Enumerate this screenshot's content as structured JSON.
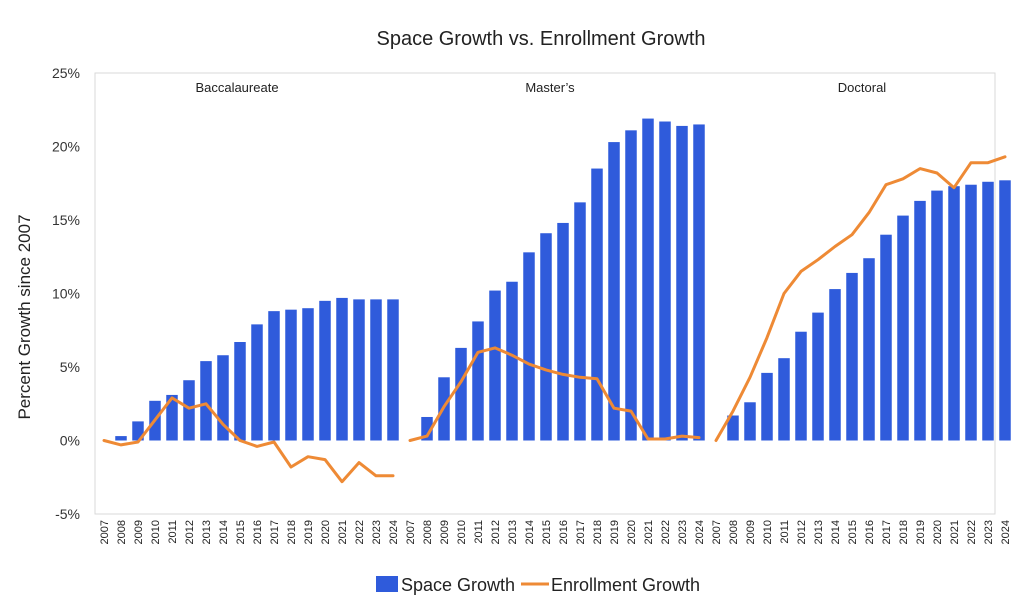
{
  "chart_data": {
    "type": "bar",
    "title": "Space Growth vs. Enrollment Growth",
    "ylabel": "Percent Growth since 2007",
    "xlabel": "",
    "ylim": [
      -0.05,
      0.25
    ],
    "yticks": [
      {
        "value": 0.25,
        "label": "25%"
      },
      {
        "value": 0.2,
        "label": "20%"
      },
      {
        "value": 0.15,
        "label": "15%"
      },
      {
        "value": 0.1,
        "label": "10%"
      },
      {
        "value": 0.05,
        "label": "5%"
      },
      {
        "value": 0.0,
        "label": "0%"
      },
      {
        "value": -0.05,
        "label": "-5%"
      }
    ],
    "grid": false,
    "legend_position": "bottom",
    "colors": {
      "space": "#2F5BDB",
      "enrollment": "#EE8A35"
    },
    "series_names": {
      "space": "Space Growth",
      "enrollment": "Enrollment Growth"
    },
    "categories": [
      "2007",
      "2008",
      "2009",
      "2010",
      "2011",
      "2012",
      "2013",
      "2014",
      "2015",
      "2016",
      "2017",
      "2018",
      "2019",
      "2020",
      "2021",
      "2022",
      "2023",
      "2024"
    ],
    "panels": [
      {
        "name": "Baccalaureate",
        "space": [
          0.0,
          0.003,
          0.013,
          0.027,
          0.031,
          0.041,
          0.054,
          0.058,
          0.067,
          0.079,
          0.088,
          0.089,
          0.09,
          0.095,
          0.097,
          0.096,
          0.096,
          0.096
        ],
        "enrollment": [
          0.0,
          -0.003,
          -0.001,
          0.014,
          0.029,
          0.022,
          0.025,
          0.011,
          0.0,
          -0.004,
          -0.001,
          -0.018,
          -0.011,
          -0.013,
          -0.028,
          -0.015,
          -0.024,
          -0.024
        ]
      },
      {
        "name": "Master’s",
        "space": [
          0.0,
          0.016,
          0.043,
          0.063,
          0.081,
          0.102,
          0.108,
          0.128,
          0.141,
          0.148,
          0.162,
          0.185,
          0.203,
          0.211,
          0.219,
          0.217,
          0.214,
          0.215
        ],
        "enrollment": [
          0.0,
          0.003,
          0.023,
          0.04,
          0.06,
          0.063,
          0.058,
          0.052,
          0.048,
          0.045,
          0.043,
          0.042,
          0.022,
          0.02,
          0.001,
          0.001,
          0.003,
          0.002
        ]
      },
      {
        "name": "Doctoral",
        "space": [
          0.0,
          0.017,
          0.026,
          0.046,
          0.056,
          0.074,
          0.087,
          0.103,
          0.114,
          0.124,
          0.14,
          0.153,
          0.163,
          0.17,
          0.173,
          0.174,
          0.176,
          0.177
        ],
        "enrollment": [
          0.0,
          0.02,
          0.043,
          0.07,
          0.1,
          0.115,
          0.123,
          0.132,
          0.14,
          0.155,
          0.174,
          0.178,
          0.185,
          0.182,
          0.172,
          0.189,
          0.189,
          0.193
        ]
      }
    ]
  }
}
